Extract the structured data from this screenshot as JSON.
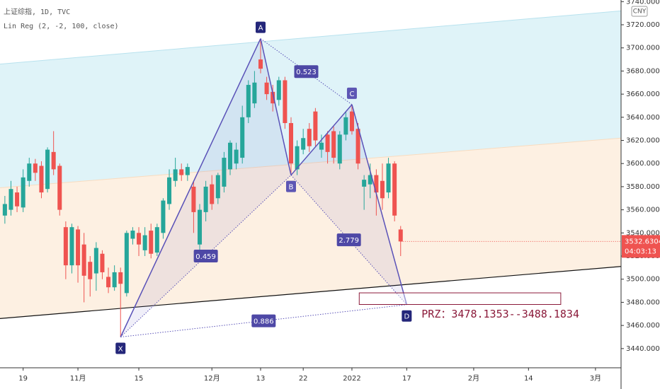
{
  "chart_data": {
    "type": "candlestick",
    "title": "上证综指, 1D, TVC",
    "subtitle": "Lin Reg (2, -2, 100, close)",
    "currency": "CNY",
    "up_color": "#26a69a",
    "down_color": "#ef5350",
    "open": [
      3555,
      3560,
      3575,
      3562,
      3585,
      3600,
      3598,
      3578,
      3610,
      3598,
      3545,
      3512,
      3543,
      3530,
      3515,
      3505,
      3522,
      3502,
      3493,
      3506,
      3488,
      3535,
      3540,
      3525,
      3542,
      3523,
      3540,
      3565,
      3585,
      3595,
      3590,
      3580,
      3530,
      3558,
      3582,
      3570,
      3580,
      3595,
      3600,
      3605,
      3640,
      3652,
      3690,
      3670,
      3662,
      3655,
      3672,
      3635,
      3595,
      3612,
      3630,
      3645,
      3612,
      3625,
      3628,
      3600,
      3625,
      3645,
      3630,
      3580,
      3582,
      3590,
      3585,
      3575,
      3600,
      3543
    ],
    "high": [
      3572,
      3585,
      3580,
      3595,
      3605,
      3604,
      3602,
      3614,
      3628,
      3600,
      3550,
      3548,
      3546,
      3540,
      3520,
      3532,
      3525,
      3510,
      3512,
      3510,
      3542,
      3545,
      3545,
      3545,
      3548,
      3548,
      3570,
      3595,
      3605,
      3600,
      3600,
      3585,
      3565,
      3585,
      3590,
      3592,
      3610,
      3620,
      3618,
      3650,
      3672,
      3680,
      3708,
      3675,
      3668,
      3675,
      3675,
      3640,
      3620,
      3630,
      3635,
      3648,
      3625,
      3628,
      3632,
      3628,
      3645,
      3651,
      3635,
      3590,
      3600,
      3595,
      3600,
      3605,
      3602,
      3546
    ],
    "low": [
      3548,
      3555,
      3558,
      3558,
      3580,
      3585,
      3570,
      3575,
      3590,
      3555,
      3500,
      3505,
      3497,
      3480,
      3485,
      3490,
      3500,
      3488,
      3490,
      3450,
      3485,
      3530,
      3520,
      3520,
      3518,
      3520,
      3535,
      3560,
      3580,
      3585,
      3585,
      3540,
      3525,
      3550,
      3560,
      3565,
      3575,
      3590,
      3595,
      3600,
      3635,
      3648,
      3678,
      3655,
      3645,
      3650,
      3630,
      3590,
      3590,
      3608,
      3610,
      3615,
      3605,
      3600,
      3600,
      3595,
      3620,
      3625,
      3595,
      3560,
      3570,
      3555,
      3560,
      3570,
      3550,
      3520
    ],
    "close": [
      3565,
      3578,
      3563,
      3588,
      3600,
      3592,
      3575,
      3612,
      3595,
      3560,
      3512,
      3545,
      3512,
      3503,
      3500,
      3527,
      3506,
      3493,
      3506,
      3496,
      3540,
      3542,
      3530,
      3538,
      3522,
      3545,
      3568,
      3588,
      3595,
      3590,
      3597,
      3558,
      3560,
      3580,
      3565,
      3590,
      3605,
      3618,
      3612,
      3640,
      3668,
      3670,
      3682,
      3660,
      3652,
      3672,
      3635,
      3600,
      3615,
      3622,
      3615,
      3620,
      3618,
      3610,
      3605,
      3625,
      3640,
      3628,
      3600,
      3586,
      3590,
      3575,
      3570,
      3600,
      3555,
      3532.6304
    ],
    "xlim": [
      -0.8,
      101.2
    ],
    "ylim": [
      3423.4,
      3741.4
    ],
    "xticks": [
      {
        "value": 3,
        "label": "19"
      },
      {
        "value": 12,
        "label": "11月"
      },
      {
        "value": 22,
        "label": "15"
      },
      {
        "value": 34,
        "label": "12月"
      },
      {
        "value": 42,
        "label": "13"
      },
      {
        "value": 49,
        "label": "22"
      },
      {
        "value": 57,
        "label": "2022"
      },
      {
        "value": 66,
        "label": "17"
      },
      {
        "value": 77,
        "label": "2月"
      },
      {
        "value": 86,
        "label": "14"
      },
      {
        "value": 97,
        "label": "3月"
      }
    ],
    "yticks": [
      {
        "value": 3440,
        "label": "3440.0000"
      },
      {
        "value": 3460,
        "label": "3460.0000"
      },
      {
        "value": 3480,
        "label": "3480.0000"
      },
      {
        "value": 3500,
        "label": "3500.0000"
      },
      {
        "value": 3520,
        "label": "3520.0000"
      },
      {
        "value": 3540,
        "label": "3540.0000"
      },
      {
        "value": 3560,
        "label": "3560.0000"
      },
      {
        "value": 3580,
        "label": "3580.0000"
      },
      {
        "value": 3600,
        "label": "3600.0000"
      },
      {
        "value": 3620,
        "label": "3620.0000"
      },
      {
        "value": 3640,
        "label": "3640.0000"
      },
      {
        "value": 3660,
        "label": "3660.0000"
      },
      {
        "value": 3680,
        "label": "3680.0000"
      },
      {
        "value": 3700,
        "label": "3700.0000"
      },
      {
        "value": 3720,
        "label": "3720.0000"
      },
      {
        "value": 3740,
        "label": "3740.0000"
      }
    ],
    "lin_reg": {
      "upper": [
        3686,
        3732
      ],
      "middle": [
        3579,
        3622
      ],
      "lower": [
        3466,
        3511
      ],
      "upper_fill": "#dff3f8",
      "lower_fill": "#fdf0e2"
    },
    "pattern": {
      "color": "#5a52b8",
      "points": [
        {
          "label": "X",
          "index": 19,
          "value": 3450
        },
        {
          "label": "A",
          "index": 42,
          "value": 3708
        },
        {
          "label": "B",
          "index": 47,
          "value": 3590
        },
        {
          "label": "C",
          "index": 57,
          "value": 3651
        },
        {
          "label": "D",
          "index": 66,
          "value": 3478
        }
      ],
      "ratios": [
        0.459,
        0.523,
        2.779,
        0.886
      ]
    },
    "prz": {
      "label": "PRZ：3478.1353--3488.1834",
      "low": 3478.1353,
      "high": 3488.1834,
      "color": "#8b1a3a"
    },
    "last_price": 3532.6304,
    "countdown": "04:03:13"
  }
}
